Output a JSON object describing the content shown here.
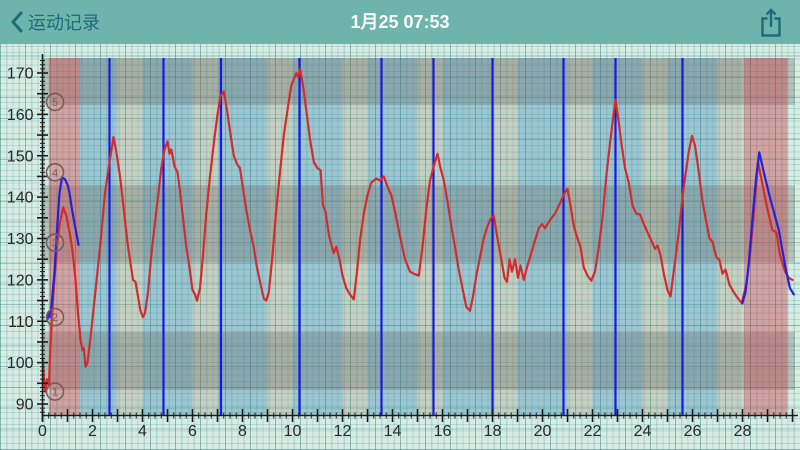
{
  "nav": {
    "back_label": "运动记录",
    "title": "1月25 07:53",
    "back_icon": "chevron-left-icon",
    "share_icon": "share-export-icon"
  },
  "colors": {
    "navbar_bg": "#6EB3AC",
    "nav_accent": "#1D6C7C",
    "title_text": "#FAFDFD",
    "paper": "#D8ECE4",
    "stripe_blue": "rgba(62,136,178,0.38)",
    "stripe_tan": "rgba(150,138,106,0.28)",
    "band_red": "rgba(198,60,68,0.42)",
    "band_grey": "rgba(96,96,92,0.30)",
    "red_line": "#D32C2C",
    "blue_line": "#2222D8",
    "lap_line": "#1818DE",
    "axis": "#1C1C1C",
    "tick_label": "#2A2A2A",
    "zone_marker": "#7A5A58"
  },
  "chart_data": {
    "type": "line",
    "title": "",
    "xlabel": "",
    "ylabel": "",
    "xlim": [
      0,
      30.1
    ],
    "ylim": [
      87.4,
      173.6
    ],
    "x_tick_labels": [
      0,
      2,
      4,
      6,
      8,
      10,
      12,
      14,
      16,
      18,
      20,
      22,
      24,
      26,
      28
    ],
    "y_tick_labels": [
      90,
      100,
      110,
      120,
      130,
      140,
      150,
      160,
      170
    ],
    "x_minor_step": 0.25,
    "x_major_step": 1,
    "y_minor_step": 1,
    "y_major_step": 5,
    "grid": true,
    "legend_position": "none",
    "zone_markers": [
      {
        "label": "1",
        "value": 93
      },
      {
        "label": "2",
        "value": 111
      },
      {
        "label": "3",
        "value": 129
      },
      {
        "label": "4",
        "value": 146
      },
      {
        "label": "5",
        "value": 163
      }
    ],
    "lap_lines_x": [
      2.68,
      4.84,
      7.14,
      10.28,
      13.56,
      15.64,
      18.0,
      20.84,
      22.92,
      25.6
    ],
    "background": {
      "red_bands_x": [
        [
          0.25,
          1.5
        ],
        [
          28.05,
          29.8
        ]
      ],
      "blue_stripes_x": [
        [
          1.5,
          3
        ],
        [
          4,
          6
        ],
        [
          7,
          9
        ],
        [
          10,
          12
        ],
        [
          13,
          15
        ],
        [
          16,
          18
        ],
        [
          19,
          21
        ],
        [
          22,
          24
        ],
        [
          25,
          27
        ]
      ],
      "tan_stripes_x": [
        [
          3,
          4
        ],
        [
          6,
          7
        ],
        [
          9,
          10
        ],
        [
          12,
          13
        ],
        [
          15,
          16
        ],
        [
          18,
          19
        ],
        [
          21,
          22
        ],
        [
          24,
          25
        ],
        [
          27,
          28
        ]
      ],
      "grey_bands_y": [
        [
          162.3,
          173.6
        ],
        [
          124.3,
          142.9
        ],
        [
          93.4,
          107.4
        ]
      ]
    },
    "series": [
      {
        "name": "heart-rate-red",
        "color": "#D32C2C",
        "points": [
          [
            0,
            101
          ],
          [
            0.1,
            93
          ],
          [
            0.18,
            96
          ],
          [
            0.25,
            94.5
          ],
          [
            0.32,
            104
          ],
          [
            0.45,
            118
          ],
          [
            0.58,
            128
          ],
          [
            0.7,
            134
          ],
          [
            0.83,
            137.5
          ],
          [
            0.95,
            135.5
          ],
          [
            1.1,
            131
          ],
          [
            1.2,
            127
          ],
          [
            1.32,
            120
          ],
          [
            1.42,
            112
          ],
          [
            1.52,
            105.5
          ],
          [
            1.6,
            103
          ],
          [
            1.65,
            103.5
          ],
          [
            1.72,
            99
          ],
          [
            1.8,
            100
          ],
          [
            1.92,
            106
          ],
          [
            2.05,
            113.5
          ],
          [
            2.2,
            122
          ],
          [
            2.35,
            131
          ],
          [
            2.5,
            141
          ],
          [
            2.62,
            146
          ],
          [
            2.72,
            150
          ],
          [
            2.84,
            154.5
          ],
          [
            2.95,
            151
          ],
          [
            3.1,
            145
          ],
          [
            3.25,
            137
          ],
          [
            3.4,
            129
          ],
          [
            3.52,
            124
          ],
          [
            3.62,
            120
          ],
          [
            3.72,
            119.5
          ],
          [
            3.82,
            116
          ],
          [
            3.92,
            112.5
          ],
          [
            4.02,
            111
          ],
          [
            4.1,
            112
          ],
          [
            4.22,
            117
          ],
          [
            4.35,
            126
          ],
          [
            4.5,
            134
          ],
          [
            4.62,
            140
          ],
          [
            4.75,
            147
          ],
          [
            4.88,
            151.5
          ],
          [
            5,
            153.5
          ],
          [
            5.08,
            150.5
          ],
          [
            5.15,
            151.5
          ],
          [
            5.28,
            147.5
          ],
          [
            5.4,
            146
          ],
          [
            5.5,
            141.5
          ],
          [
            5.62,
            135
          ],
          [
            5.75,
            128
          ],
          [
            5.88,
            123
          ],
          [
            6,
            117.5
          ],
          [
            6.1,
            116.5
          ],
          [
            6.18,
            115
          ],
          [
            6.3,
            118
          ],
          [
            6.42,
            126
          ],
          [
            6.55,
            136
          ],
          [
            6.7,
            145
          ],
          [
            6.85,
            153
          ],
          [
            7,
            160
          ],
          [
            7.12,
            164.5
          ],
          [
            7.25,
            165.5
          ],
          [
            7.38,
            161
          ],
          [
            7.5,
            156
          ],
          [
            7.65,
            150
          ],
          [
            7.78,
            148
          ],
          [
            7.9,
            147
          ],
          [
            8.02,
            142
          ],
          [
            8.15,
            137
          ],
          [
            8.3,
            132
          ],
          [
            8.45,
            128
          ],
          [
            8.58,
            123
          ],
          [
            8.72,
            119
          ],
          [
            8.85,
            115.5
          ],
          [
            8.95,
            115
          ],
          [
            9.05,
            117
          ],
          [
            9.2,
            126
          ],
          [
            9.35,
            137
          ],
          [
            9.5,
            146
          ],
          [
            9.65,
            155
          ],
          [
            9.8,
            161
          ],
          [
            9.95,
            167
          ],
          [
            10.05,
            168.5
          ],
          [
            10.15,
            170
          ],
          [
            10.22,
            169
          ],
          [
            10.3,
            171
          ],
          [
            10.42,
            167
          ],
          [
            10.55,
            161
          ],
          [
            10.7,
            154
          ],
          [
            10.85,
            148.5
          ],
          [
            11,
            147
          ],
          [
            11.12,
            146.5
          ],
          [
            11.22,
            138
          ],
          [
            11.32,
            136.5
          ],
          [
            11.45,
            131
          ],
          [
            11.55,
            128.5
          ],
          [
            11.65,
            126.5
          ],
          [
            11.75,
            128
          ],
          [
            11.88,
            125
          ],
          [
            12,
            121
          ],
          [
            12.15,
            118
          ],
          [
            12.3,
            116.5
          ],
          [
            12.45,
            115.3
          ],
          [
            12.58,
            122
          ],
          [
            12.7,
            129.5
          ],
          [
            12.85,
            136
          ],
          [
            13,
            140.5
          ],
          [
            13.15,
            143.5
          ],
          [
            13.35,
            144.5
          ],
          [
            13.5,
            144
          ],
          [
            13.65,
            145
          ],
          [
            13.8,
            142.5
          ],
          [
            13.95,
            140.5
          ],
          [
            14.1,
            136.5
          ],
          [
            14.3,
            130.5
          ],
          [
            14.5,
            125
          ],
          [
            14.7,
            122
          ],
          [
            14.85,
            121.5
          ],
          [
            15.05,
            121
          ],
          [
            15.2,
            128
          ],
          [
            15.35,
            137
          ],
          [
            15.5,
            144
          ],
          [
            15.65,
            147.5
          ],
          [
            15.8,
            150.5
          ],
          [
            15.92,
            147
          ],
          [
            16.05,
            144
          ],
          [
            16.2,
            139
          ],
          [
            16.35,
            133
          ],
          [
            16.5,
            128
          ],
          [
            16.65,
            122.5
          ],
          [
            16.8,
            118
          ],
          [
            16.95,
            113.5
          ],
          [
            17.1,
            112.5
          ],
          [
            17.22,
            116
          ],
          [
            17.35,
            121
          ],
          [
            17.5,
            125.5
          ],
          [
            17.65,
            130
          ],
          [
            17.8,
            133
          ],
          [
            17.95,
            135
          ],
          [
            18.05,
            135.5
          ],
          [
            18.2,
            130
          ],
          [
            18.35,
            125
          ],
          [
            18.48,
            120.5
          ],
          [
            18.58,
            119.5
          ],
          [
            18.68,
            125
          ],
          [
            18.78,
            122
          ],
          [
            18.9,
            125
          ],
          [
            19.02,
            120.5
          ],
          [
            19.12,
            123.5
          ],
          [
            19.25,
            120
          ],
          [
            19.4,
            123.5
          ],
          [
            19.55,
            126.5
          ],
          [
            19.7,
            129.5
          ],
          [
            19.85,
            132.5
          ],
          [
            19.98,
            133.5
          ],
          [
            20.1,
            132.5
          ],
          [
            20.3,
            134.5
          ],
          [
            20.5,
            136
          ],
          [
            20.7,
            138.5
          ],
          [
            20.88,
            141
          ],
          [
            21,
            142
          ],
          [
            21.12,
            138
          ],
          [
            21.25,
            133
          ],
          [
            21.4,
            130
          ],
          [
            21.52,
            128
          ],
          [
            21.65,
            123
          ],
          [
            21.8,
            121
          ],
          [
            21.95,
            119.8
          ],
          [
            22.1,
            122
          ],
          [
            22.25,
            128
          ],
          [
            22.4,
            135
          ],
          [
            22.55,
            145
          ],
          [
            22.7,
            153
          ],
          [
            22.82,
            159
          ],
          [
            22.92,
            163.5
          ],
          [
            23.05,
            158
          ],
          [
            23.18,
            152
          ],
          [
            23.3,
            147
          ],
          [
            23.45,
            143.5
          ],
          [
            23.6,
            138
          ],
          [
            23.75,
            136
          ],
          [
            23.9,
            135.8
          ],
          [
            24.05,
            133.5
          ],
          [
            24.2,
            131.5
          ],
          [
            24.35,
            129.5
          ],
          [
            24.5,
            127.5
          ],
          [
            24.6,
            128.3
          ],
          [
            24.72,
            126
          ],
          [
            24.85,
            121.5
          ],
          [
            25,
            117.5
          ],
          [
            25.12,
            116
          ],
          [
            25.28,
            123.5
          ],
          [
            25.45,
            131.5
          ],
          [
            25.6,
            140
          ],
          [
            25.72,
            145.5
          ],
          [
            25.85,
            151
          ],
          [
            25.98,
            154.8
          ],
          [
            26.1,
            152.5
          ],
          [
            26.25,
            146
          ],
          [
            26.4,
            139
          ],
          [
            26.55,
            134
          ],
          [
            26.68,
            130
          ],
          [
            26.8,
            129.2
          ],
          [
            26.95,
            125.5
          ],
          [
            27.08,
            124.8
          ],
          [
            27.2,
            121.5
          ],
          [
            27.32,
            122.5
          ],
          [
            27.48,
            118.8
          ],
          [
            27.65,
            117
          ],
          [
            27.82,
            115.5
          ],
          [
            27.97,
            114.4
          ],
          [
            28.15,
            119
          ],
          [
            28.3,
            126
          ],
          [
            28.45,
            136
          ],
          [
            28.62,
            148.5
          ],
          [
            28.8,
            143
          ],
          [
            29,
            137
          ],
          [
            29.2,
            132
          ],
          [
            29.35,
            131.5
          ],
          [
            29.5,
            126
          ],
          [
            29.7,
            122
          ],
          [
            29.85,
            120.5
          ],
          [
            30,
            120
          ]
        ]
      },
      {
        "name": "companion-blue-start",
        "color": "#2222D8",
        "points": [
          [
            0.2,
            110.5
          ],
          [
            0.26,
            112
          ],
          [
            0.3,
            111
          ],
          [
            0.38,
            115
          ],
          [
            0.48,
            122
          ],
          [
            0.58,
            132
          ],
          [
            0.68,
            141
          ],
          [
            0.78,
            144.8
          ],
          [
            0.9,
            144.3
          ],
          [
            1,
            143
          ],
          [
            1.08,
            141
          ],
          [
            1.18,
            137
          ],
          [
            1.3,
            133
          ],
          [
            1.44,
            128.5
          ]
        ]
      },
      {
        "name": "companion-blue-end",
        "color": "#2222D8",
        "points": [
          [
            27.99,
            114.3
          ],
          [
            28.12,
            117
          ],
          [
            28.25,
            124
          ],
          [
            28.4,
            135
          ],
          [
            28.55,
            145
          ],
          [
            28.67,
            150.8
          ],
          [
            28.85,
            146
          ],
          [
            29.05,
            141
          ],
          [
            29.25,
            136.5
          ],
          [
            29.45,
            132
          ],
          [
            29.6,
            127
          ],
          [
            29.75,
            122
          ],
          [
            29.9,
            118
          ],
          [
            30.05,
            116.5
          ]
        ]
      }
    ]
  }
}
